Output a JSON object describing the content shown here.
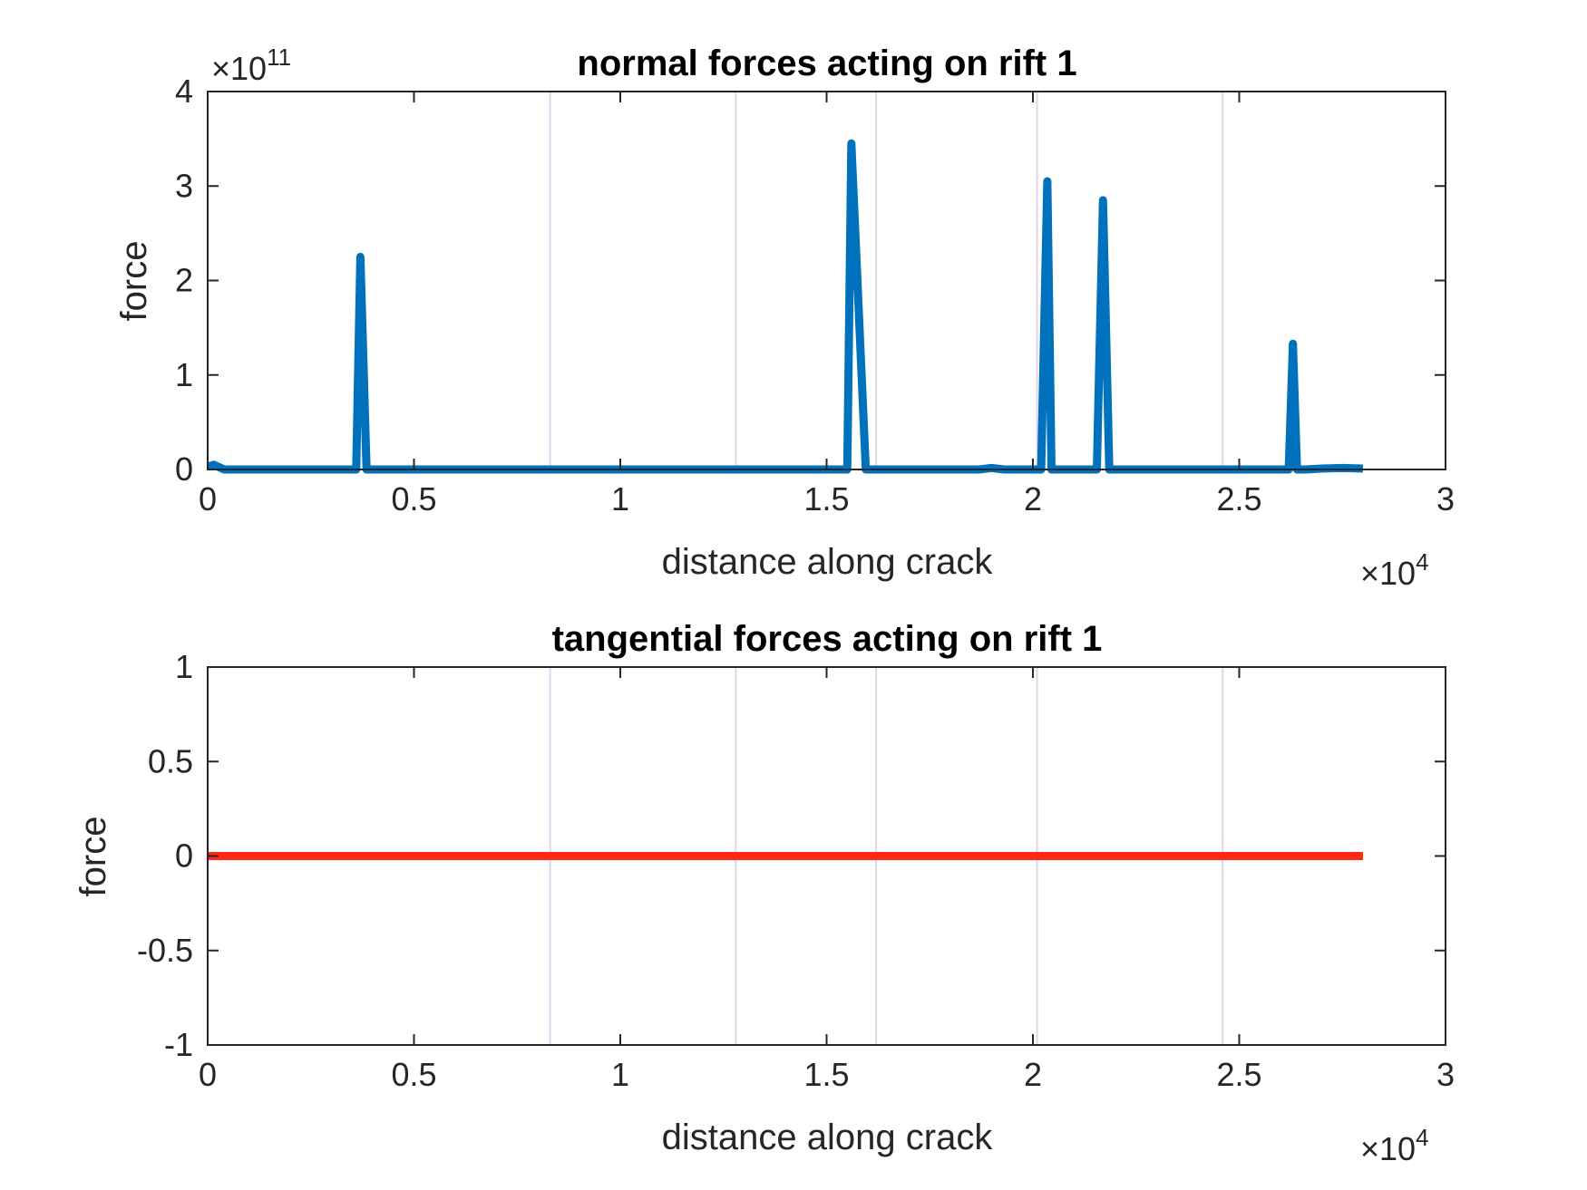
{
  "chart_data": [
    {
      "type": "line",
      "title": "normal forces acting on rift 1",
      "xlabel": "distance along crack",
      "ylabel": "force",
      "xlim": [
        0,
        30000
      ],
      "ylim": [
        0,
        400000000000
      ],
      "x_ticks": [
        0,
        5000,
        10000,
        15000,
        20000,
        25000,
        30000
      ],
      "x_tick_labels": [
        "0",
        "0.5",
        "1",
        "1.5",
        "2",
        "2.5",
        "3"
      ],
      "y_ticks": [
        0,
        100000000000,
        200000000000,
        300000000000,
        400000000000
      ],
      "y_tick_labels": [
        "0",
        "1",
        "2",
        "3",
        "4"
      ],
      "x_exponent": "4",
      "y_exponent": "11",
      "grid": false,
      "vertical_lines": [
        8300,
        12800,
        16200,
        20100,
        24600
      ],
      "vertical_line_color": "#e3d3ec",
      "series": [
        {
          "color": "#0072bd",
          "x": [
            0,
            150,
            400,
            600,
            3400,
            3600,
            3700,
            3850,
            4000,
            4200,
            15300,
            15500,
            15600,
            15950,
            16100,
            18700,
            19000,
            19300,
            20000,
            20200,
            20350,
            20450,
            20550,
            21400,
            21550,
            21700,
            21850,
            22100,
            22300,
            25800,
            26000,
            26200,
            26300,
            26400,
            26600,
            27000,
            27500,
            28000
          ],
          "y": [
            3000000000,
            5000000000,
            0,
            0,
            0,
            0,
            225000000000,
            0,
            0,
            0,
            0,
            0,
            345000000000,
            0,
            0,
            0,
            1500000000,
            0,
            0,
            0,
            305000000000,
            0,
            0,
            0,
            0,
            285000000000,
            0,
            0,
            0,
            0,
            0,
            0,
            133000000000,
            0,
            0,
            1000000000,
            1500000000,
            1000000000
          ]
        }
      ]
    },
    {
      "type": "line",
      "title": "tangential forces acting on rift 1",
      "xlabel": "distance along crack",
      "ylabel": "force",
      "xlim": [
        0,
        30000
      ],
      "ylim": [
        -1,
        1
      ],
      "x_ticks": [
        0,
        5000,
        10000,
        15000,
        20000,
        25000,
        30000
      ],
      "x_tick_labels": [
        "0",
        "0.5",
        "1",
        "1.5",
        "2",
        "2.5",
        "3"
      ],
      "y_ticks": [
        -1,
        -0.5,
        0,
        0.5,
        1
      ],
      "y_tick_labels": [
        "-1",
        "-0.5",
        "0",
        "0.5",
        "1"
      ],
      "x_exponent": "4",
      "grid": false,
      "vertical_lines": [
        8300,
        12800,
        16200,
        20100,
        24600
      ],
      "vertical_line_color": "#e3d3ec",
      "series": [
        {
          "color": "#ff2a13",
          "x": [
            0,
            28000
          ],
          "y": [
            0,
            0
          ]
        }
      ]
    }
  ]
}
